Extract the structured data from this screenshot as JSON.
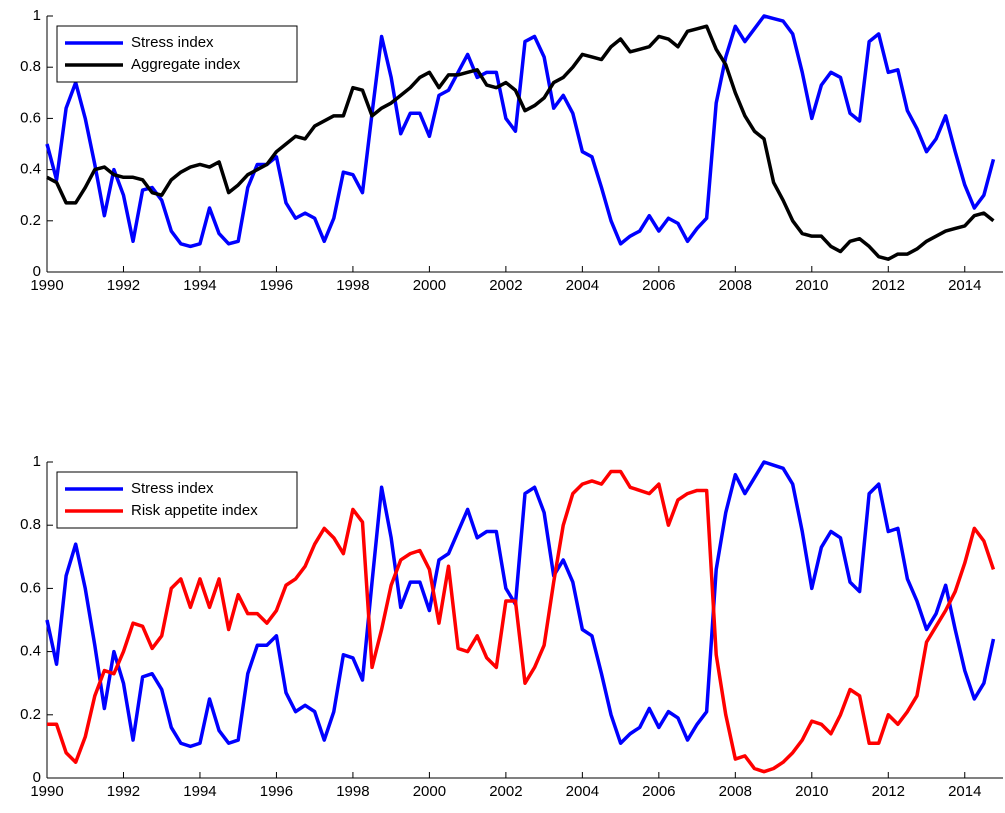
{
  "chart_data": [
    {
      "type": "line",
      "legend": "upper left",
      "xlim": [
        1990,
        2015
      ],
      "ylim": [
        0,
        1
      ],
      "xticks": [
        1990,
        1992,
        1994,
        1996,
        1998,
        2000,
        2002,
        2004,
        2006,
        2008,
        2010,
        2012,
        2014
      ],
      "yticks": [
        0,
        0.2,
        0.4,
        0.6,
        0.8,
        1
      ],
      "x": [
        1990,
        1990.25,
        1990.5,
        1990.75,
        1991,
        1991.25,
        1991.5,
        1991.75,
        1992,
        1992.25,
        1992.5,
        1992.75,
        1993,
        1993.25,
        1993.5,
        1993.75,
        1994,
        1994.25,
        1994.5,
        1994.75,
        1995,
        1995.25,
        1995.5,
        1995.75,
        1996,
        1996.25,
        1996.5,
        1996.75,
        1997,
        1997.25,
        1997.5,
        1997.75,
        1998,
        1998.25,
        1998.5,
        1998.75,
        1999,
        1999.25,
        1999.5,
        1999.75,
        2000,
        2000.25,
        2000.5,
        2000.75,
        2001,
        2001.25,
        2001.5,
        2001.75,
        2002,
        2002.25,
        2002.5,
        2002.75,
        2003,
        2003.25,
        2003.5,
        2003.75,
        2004,
        2004.25,
        2004.5,
        2004.75,
        2005,
        2005.25,
        2005.5,
        2005.75,
        2006,
        2006.25,
        2006.5,
        2006.75,
        2007,
        2007.25,
        2007.5,
        2007.75,
        2008,
        2008.25,
        2008.5,
        2008.75,
        2009,
        2009.25,
        2009.5,
        2009.75,
        2010,
        2010.25,
        2010.5,
        2010.75,
        2011,
        2011.25,
        2011.5,
        2011.75,
        2012,
        2012.25,
        2012.5,
        2012.75,
        2013,
        2013.25,
        2013.5,
        2013.75,
        2014,
        2014.25,
        2014.5,
        2014.75
      ],
      "series": [
        {
          "name": "Stress index",
          "color": "#0000ff",
          "values": [
            0.5,
            0.36,
            0.64,
            0.74,
            0.6,
            0.42,
            0.22,
            0.4,
            0.3,
            0.12,
            0.32,
            0.33,
            0.28,
            0.16,
            0.11,
            0.1,
            0.11,
            0.25,
            0.15,
            0.11,
            0.12,
            0.33,
            0.42,
            0.42,
            0.45,
            0.27,
            0.21,
            0.23,
            0.21,
            0.12,
            0.21,
            0.39,
            0.38,
            0.31,
            0.62,
            0.92,
            0.76,
            0.54,
            0.62,
            0.62,
            0.53,
            0.69,
            0.71,
            0.78,
            0.85,
            0.76,
            0.78,
            0.78,
            0.6,
            0.55,
            0.9,
            0.92,
            0.84,
            0.64,
            0.69,
            0.62,
            0.47,
            0.45,
            0.33,
            0.2,
            0.11,
            0.14,
            0.16,
            0.22,
            0.16,
            0.21,
            0.19,
            0.12,
            0.17,
            0.21,
            0.66,
            0.84,
            0.96,
            0.9,
            0.95,
            1.0,
            0.99,
            0.98,
            0.93,
            0.78,
            0.6,
            0.73,
            0.78,
            0.76,
            0.62,
            0.59,
            0.9,
            0.93,
            0.78,
            0.79,
            0.63,
            0.56,
            0.47,
            0.52,
            0.61,
            0.47,
            0.34,
            0.25,
            0.3,
            0.44
          ]
        },
        {
          "name": "Aggregate index",
          "color": "#000000",
          "values": [
            0.37,
            0.35,
            0.27,
            0.27,
            0.33,
            0.4,
            0.41,
            0.38,
            0.37,
            0.37,
            0.36,
            0.31,
            0.3,
            0.36,
            0.39,
            0.41,
            0.42,
            0.41,
            0.43,
            0.31,
            0.34,
            0.38,
            0.4,
            0.42,
            0.47,
            0.5,
            0.53,
            0.52,
            0.57,
            0.59,
            0.61,
            0.61,
            0.72,
            0.71,
            0.61,
            0.64,
            0.66,
            0.69,
            0.72,
            0.76,
            0.78,
            0.72,
            0.77,
            0.77,
            0.78,
            0.79,
            0.73,
            0.72,
            0.74,
            0.71,
            0.63,
            0.65,
            0.68,
            0.74,
            0.76,
            0.8,
            0.85,
            0.84,
            0.83,
            0.88,
            0.91,
            0.86,
            0.87,
            0.88,
            0.92,
            0.91,
            0.88,
            0.94,
            0.95,
            0.96,
            0.87,
            0.81,
            0.7,
            0.61,
            0.55,
            0.52,
            0.35,
            0.28,
            0.2,
            0.15,
            0.14,
            0.14,
            0.1,
            0.08,
            0.12,
            0.13,
            0.1,
            0.06,
            0.05,
            0.07,
            0.07,
            0.09,
            0.12,
            0.14,
            0.16,
            0.17,
            0.18,
            0.22,
            0.23,
            0.2
          ]
        }
      ]
    },
    {
      "type": "line",
      "legend": "upper left",
      "xlim": [
        1990,
        2015
      ],
      "ylim": [
        0,
        1
      ],
      "xticks": [
        1990,
        1992,
        1994,
        1996,
        1998,
        2000,
        2002,
        2004,
        2006,
        2008,
        2010,
        2012,
        2014
      ],
      "yticks": [
        0,
        0.2,
        0.4,
        0.6,
        0.8,
        1
      ],
      "x": [
        1990,
        1990.25,
        1990.5,
        1990.75,
        1991,
        1991.25,
        1991.5,
        1991.75,
        1992,
        1992.25,
        1992.5,
        1992.75,
        1993,
        1993.25,
        1993.5,
        1993.75,
        1994,
        1994.25,
        1994.5,
        1994.75,
        1995,
        1995.25,
        1995.5,
        1995.75,
        1996,
        1996.25,
        1996.5,
        1996.75,
        1997,
        1997.25,
        1997.5,
        1997.75,
        1998,
        1998.25,
        1998.5,
        1998.75,
        1999,
        1999.25,
        1999.5,
        1999.75,
        2000,
        2000.25,
        2000.5,
        2000.75,
        2001,
        2001.25,
        2001.5,
        2001.75,
        2002,
        2002.25,
        2002.5,
        2002.75,
        2003,
        2003.25,
        2003.5,
        2003.75,
        2004,
        2004.25,
        2004.5,
        2004.75,
        2005,
        2005.25,
        2005.5,
        2005.75,
        2006,
        2006.25,
        2006.5,
        2006.75,
        2007,
        2007.25,
        2007.5,
        2007.75,
        2008,
        2008.25,
        2008.5,
        2008.75,
        2009,
        2009.25,
        2009.5,
        2009.75,
        2010,
        2010.25,
        2010.5,
        2010.75,
        2011,
        2011.25,
        2011.5,
        2011.75,
        2012,
        2012.25,
        2012.5,
        2012.75,
        2013,
        2013.25,
        2013.5,
        2013.75,
        2014,
        2014.25,
        2014.5,
        2014.75
      ],
      "series": [
        {
          "name": "Stress index",
          "color": "#0000ff",
          "values": [
            0.5,
            0.36,
            0.64,
            0.74,
            0.6,
            0.42,
            0.22,
            0.4,
            0.3,
            0.12,
            0.32,
            0.33,
            0.28,
            0.16,
            0.11,
            0.1,
            0.11,
            0.25,
            0.15,
            0.11,
            0.12,
            0.33,
            0.42,
            0.42,
            0.45,
            0.27,
            0.21,
            0.23,
            0.21,
            0.12,
            0.21,
            0.39,
            0.38,
            0.31,
            0.62,
            0.92,
            0.76,
            0.54,
            0.62,
            0.62,
            0.53,
            0.69,
            0.71,
            0.78,
            0.85,
            0.76,
            0.78,
            0.78,
            0.6,
            0.55,
            0.9,
            0.92,
            0.84,
            0.64,
            0.69,
            0.62,
            0.47,
            0.45,
            0.33,
            0.2,
            0.11,
            0.14,
            0.16,
            0.22,
            0.16,
            0.21,
            0.19,
            0.12,
            0.17,
            0.21,
            0.66,
            0.84,
            0.96,
            0.9,
            0.95,
            1.0,
            0.99,
            0.98,
            0.93,
            0.78,
            0.6,
            0.73,
            0.78,
            0.76,
            0.62,
            0.59,
            0.9,
            0.93,
            0.78,
            0.79,
            0.63,
            0.56,
            0.47,
            0.52,
            0.61,
            0.47,
            0.34,
            0.25,
            0.3,
            0.44
          ]
        },
        {
          "name": "Risk appetite index",
          "color": "#ff0000",
          "values": [
            0.17,
            0.17,
            0.08,
            0.05,
            0.13,
            0.26,
            0.34,
            0.33,
            0.4,
            0.49,
            0.48,
            0.41,
            0.45,
            0.6,
            0.63,
            0.54,
            0.63,
            0.54,
            0.63,
            0.47,
            0.58,
            0.52,
            0.52,
            0.49,
            0.53,
            0.61,
            0.63,
            0.67,
            0.74,
            0.79,
            0.76,
            0.71,
            0.85,
            0.81,
            0.35,
            0.47,
            0.61,
            0.69,
            0.71,
            0.72,
            0.66,
            0.49,
            0.67,
            0.41,
            0.4,
            0.45,
            0.38,
            0.35,
            0.56,
            0.56,
            0.3,
            0.35,
            0.42,
            0.62,
            0.8,
            0.9,
            0.93,
            0.94,
            0.93,
            0.97,
            0.97,
            0.92,
            0.91,
            0.9,
            0.93,
            0.8,
            0.88,
            0.9,
            0.91,
            0.91,
            0.39,
            0.2,
            0.06,
            0.07,
            0.03,
            0.02,
            0.03,
            0.05,
            0.08,
            0.12,
            0.18,
            0.17,
            0.14,
            0.2,
            0.28,
            0.26,
            0.11,
            0.11,
            0.2,
            0.17,
            0.21,
            0.26,
            0.43,
            0.48,
            0.53,
            0.59,
            0.68,
            0.79,
            0.75,
            0.66
          ]
        }
      ]
    }
  ]
}
